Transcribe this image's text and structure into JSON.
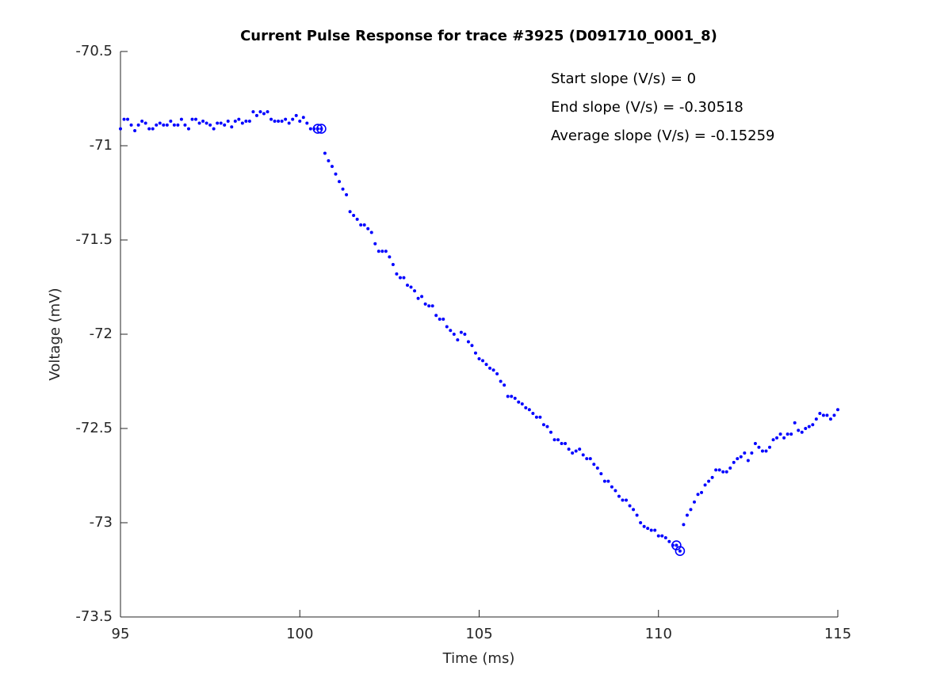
{
  "chart_data": {
    "type": "scatter",
    "title": "Current Pulse Response for trace #3925 (D091710_0001_8)",
    "x_label": "Time (ms)",
    "y_label": "Voltage (mV)",
    "annotations": [
      "Start slope (V/s) = 0",
      "End slope (V/s) = -0.30518",
      "Average slope (V/s) = -0.15259"
    ],
    "xlim": [
      95,
      115
    ],
    "xticks": [
      95,
      100,
      105,
      110,
      115
    ],
    "ylim": [
      -73.5,
      -70.5
    ],
    "yticks": [
      -73.5,
      -73,
      -72.5,
      -72,
      -71.5,
      -71,
      -70.5
    ],
    "series": [
      {
        "marker": "dot",
        "color": "#0000ff",
        "x": [
          95.0,
          95.1,
          95.2,
          95.3,
          95.4,
          95.5,
          95.6,
          95.7,
          95.8,
          95.9,
          96.0,
          96.1,
          96.2,
          96.3,
          96.4,
          96.5,
          96.6,
          96.7,
          96.8,
          96.9,
          97.0,
          97.1,
          97.2,
          97.3,
          97.4,
          97.5,
          97.6,
          97.7,
          97.8,
          97.9,
          98.0,
          98.1,
          98.2,
          98.3,
          98.4,
          98.5,
          98.6,
          98.7,
          98.8,
          98.9,
          99.0,
          99.1,
          99.2,
          99.3,
          99.4,
          99.5,
          99.6,
          99.7,
          99.8,
          99.9,
          100.0,
          100.1,
          100.2,
          100.3,
          100.4,
          100.5,
          100.6,
          100.7,
          100.8,
          100.9,
          101.0,
          101.1,
          101.2,
          101.3,
          101.4,
          101.5,
          101.6,
          101.7,
          101.8,
          101.9,
          102.0,
          102.1,
          102.2,
          102.3,
          102.4,
          102.5,
          102.6,
          102.7,
          102.8,
          102.9,
          103.0,
          103.1,
          103.2,
          103.3,
          103.4,
          103.5,
          103.6,
          103.7,
          103.8,
          103.9,
          104.0,
          104.1,
          104.2,
          104.3,
          104.4,
          104.5,
          104.6,
          104.7,
          104.8,
          104.9,
          105.0,
          105.1,
          105.2,
          105.3,
          105.4,
          105.5,
          105.6,
          105.7,
          105.8,
          105.9,
          106.0,
          106.1,
          106.2,
          106.3,
          106.4,
          106.5,
          106.6,
          106.7,
          106.8,
          106.9,
          107.0,
          107.1,
          107.2,
          107.3,
          107.4,
          107.5,
          107.6,
          107.7,
          107.8,
          107.9,
          108.0,
          108.1,
          108.2,
          108.3,
          108.4,
          108.5,
          108.6,
          108.7,
          108.8,
          108.9,
          109.0,
          109.1,
          109.2,
          109.3,
          109.4,
          109.5,
          109.6,
          109.7,
          109.8,
          109.9,
          110.0,
          110.1,
          110.2,
          110.3,
          110.4,
          110.5,
          110.6,
          110.7,
          110.8,
          110.9,
          111.0,
          111.1,
          111.2,
          111.3,
          111.4,
          111.5,
          111.6,
          111.7,
          111.8,
          111.9,
          112.0,
          112.1,
          112.2,
          112.3,
          112.4,
          112.5,
          112.6,
          112.7,
          112.8,
          112.9,
          113.0,
          113.1,
          113.2,
          113.3,
          113.4,
          113.5,
          113.6,
          113.7,
          113.8,
          113.9,
          114.0,
          114.1,
          114.2,
          114.3,
          114.4,
          114.5,
          114.6,
          114.7,
          114.8,
          114.9,
          115.0
        ],
        "values": [
          -70.91,
          -70.86,
          -70.86,
          -70.89,
          -70.92,
          -70.89,
          -70.87,
          -70.88,
          -70.91,
          -70.91,
          -70.89,
          -70.88,
          -70.89,
          -70.89,
          -70.87,
          -70.89,
          -70.89,
          -70.86,
          -70.89,
          -70.91,
          -70.86,
          -70.86,
          -70.88,
          -70.87,
          -70.88,
          -70.89,
          -70.91,
          -70.88,
          -70.88,
          -70.89,
          -70.87,
          -70.9,
          -70.87,
          -70.86,
          -70.88,
          -70.87,
          -70.87,
          -70.82,
          -70.84,
          -70.82,
          -70.83,
          -70.82,
          -70.86,
          -70.87,
          -70.87,
          -70.87,
          -70.86,
          -70.88,
          -70.86,
          -70.84,
          -70.87,
          -70.85,
          -70.88,
          -70.91,
          -70.91,
          -70.91,
          -70.91,
          -71.04,
          -71.08,
          -71.11,
          -71.15,
          -71.19,
          -71.23,
          -71.26,
          -71.35,
          -71.37,
          -71.39,
          -71.42,
          -71.42,
          -71.44,
          -71.46,
          -71.52,
          -71.56,
          -71.56,
          -71.56,
          -71.59,
          -71.63,
          -71.68,
          -71.7,
          -71.7,
          -71.74,
          -71.75,
          -71.77,
          -71.81,
          -71.8,
          -71.84,
          -71.85,
          -71.85,
          -71.9,
          -71.92,
          -71.92,
          -71.96,
          -71.98,
          -72.0,
          -72.03,
          -71.99,
          -72.0,
          -72.04,
          -72.06,
          -72.1,
          -72.13,
          -72.14,
          -72.16,
          -72.18,
          -72.19,
          -72.21,
          -72.25,
          -72.27,
          -72.33,
          -72.33,
          -72.34,
          -72.36,
          -72.37,
          -72.39,
          -72.4,
          -72.42,
          -72.44,
          -72.44,
          -72.48,
          -72.49,
          -72.52,
          -72.56,
          -72.56,
          -72.58,
          -72.58,
          -72.61,
          -72.63,
          -72.62,
          -72.61,
          -72.64,
          -72.66,
          -72.66,
          -72.69,
          -72.71,
          -72.74,
          -72.78,
          -72.78,
          -72.81,
          -72.83,
          -72.86,
          -72.88,
          -72.88,
          -72.91,
          -72.93,
          -72.96,
          -73.0,
          -73.02,
          -73.03,
          -73.04,
          -73.04,
          -73.07,
          -73.07,
          -73.08,
          -73.1,
          -73.12,
          -73.12,
          -73.15,
          -73.01,
          -72.96,
          -72.93,
          -72.89,
          -72.85,
          -72.84,
          -72.8,
          -72.78,
          -72.76,
          -72.72,
          -72.72,
          -72.73,
          -72.73,
          -72.71,
          -72.68,
          -72.66,
          -72.65,
          -72.63,
          -72.67,
          -72.63,
          -72.58,
          -72.6,
          -72.62,
          -72.62,
          -72.6,
          -72.56,
          -72.55,
          -72.53,
          -72.55,
          -72.53,
          -72.53,
          -72.47,
          -72.51,
          -72.52,
          -72.5,
          -72.49,
          -72.48,
          -72.45,
          -72.42,
          -72.43,
          -72.43,
          -72.45,
          -72.43,
          -72.4
        ]
      },
      {
        "marker": "circle",
        "color": "#0000ff",
        "x": [
          100.5,
          100.6,
          110.5,
          110.6
        ],
        "values": [
          -70.91,
          -70.91,
          -73.12,
          -73.15
        ]
      }
    ]
  }
}
